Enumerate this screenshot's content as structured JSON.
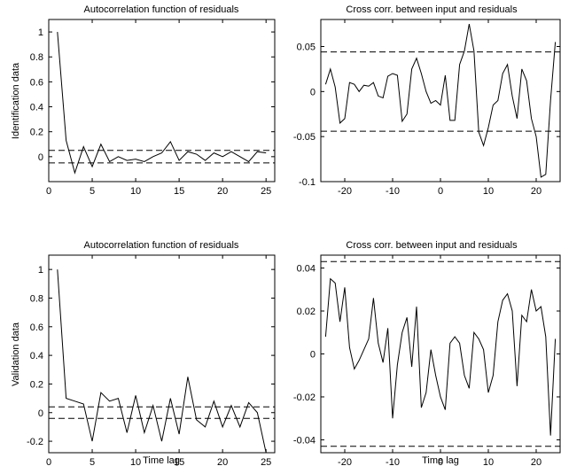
{
  "chart_data": [
    {
      "type": "line",
      "title": "Autocorrelation function of residuals",
      "ylabel": "Identification data",
      "xlabel": "",
      "xlim": [
        0,
        26
      ],
      "ylim": [
        -0.2,
        1.1
      ],
      "xticks": [
        0,
        5,
        10,
        15,
        20,
        25
      ],
      "yticks": [
        0,
        0.2,
        0.4,
        0.6,
        0.8,
        1
      ],
      "ytick_labels": [
        "0",
        "0.2",
        "0.4",
        "0.6",
        "0.8",
        "1"
      ],
      "grid": false,
      "x": [
        1,
        2,
        3,
        4,
        5,
        6,
        7,
        8,
        9,
        10,
        11,
        12,
        13,
        14,
        15,
        16,
        17,
        18,
        19,
        20,
        21,
        22,
        23,
        24,
        25
      ],
      "values": [
        1.0,
        0.13,
        -0.13,
        0.08,
        -0.08,
        0.1,
        -0.04,
        0.0,
        -0.03,
        -0.02,
        -0.04,
        0.0,
        0.03,
        0.12,
        -0.03,
        0.04,
        0.02,
        -0.03,
        0.03,
        0.0,
        0.04,
        0.0,
        -0.04,
        0.04,
        0.03
      ],
      "conf_bounds": [
        0.05,
        -0.05
      ]
    },
    {
      "type": "line",
      "title": "Cross corr. between input and residuals",
      "ylabel": "",
      "xlabel": "",
      "xlim": [
        -25,
        25
      ],
      "ylim": [
        -0.1,
        0.08
      ],
      "xticks": [
        -20,
        -10,
        0,
        10,
        20
      ],
      "yticks": [
        -0.1,
        -0.05,
        0,
        0.05
      ],
      "ytick_labels": [
        "-0.1",
        "-0.05",
        "0",
        "0.05"
      ],
      "grid": false,
      "x": [
        -24,
        -23,
        -22,
        -21,
        -20,
        -19,
        -18,
        -17,
        -16,
        -15,
        -14,
        -13,
        -12,
        -11,
        -10,
        -9,
        -8,
        -7,
        -6,
        -5,
        -4,
        -3,
        -2,
        -1,
        0,
        1,
        2,
        3,
        4,
        5,
        6,
        7,
        8,
        9,
        10,
        11,
        12,
        13,
        14,
        15,
        16,
        17,
        18,
        19,
        20,
        21,
        22,
        23,
        24
      ],
      "values": [
        0.008,
        0.025,
        0.005,
        -0.035,
        -0.03,
        0.01,
        0.008,
        0.0,
        0.007,
        0.006,
        0.01,
        -0.005,
        -0.007,
        0.017,
        0.02,
        0.018,
        -0.033,
        -0.025,
        0.025,
        0.037,
        0.02,
        0.0,
        -0.013,
        -0.01,
        -0.015,
        0.018,
        -0.032,
        -0.032,
        0.03,
        0.045,
        0.075,
        0.045,
        -0.045,
        -0.06,
        -0.04,
        -0.015,
        -0.01,
        0.02,
        0.03,
        -0.005,
        -0.03,
        0.025,
        0.012,
        -0.03,
        -0.05,
        -0.095,
        -0.092,
        -0.01,
        0.055
      ],
      "conf_bounds": [
        0.044,
        -0.044
      ]
    },
    {
      "type": "line",
      "title": "Autocorrelation function of residuals",
      "ylabel": "Validation data",
      "xlabel": "Time lag",
      "xlim": [
        0,
        26
      ],
      "ylim": [
        -0.28,
        1.1
      ],
      "xticks": [
        0,
        5,
        10,
        15,
        20,
        25
      ],
      "yticks": [
        -0.2,
        0,
        0.2,
        0.4,
        0.6,
        0.8,
        1
      ],
      "ytick_labels": [
        "-0.2",
        "0",
        "0.2",
        "0.4",
        "0.6",
        "0.8",
        "1"
      ],
      "grid": false,
      "x": [
        1,
        2,
        3,
        4,
        5,
        6,
        7,
        8,
        9,
        10,
        11,
        12,
        13,
        14,
        15,
        16,
        17,
        18,
        19,
        20,
        21,
        22,
        23,
        24,
        25
      ],
      "values": [
        1.0,
        0.1,
        0.08,
        0.06,
        -0.2,
        0.14,
        0.08,
        0.1,
        -0.14,
        0.12,
        -0.14,
        0.05,
        -0.2,
        0.1,
        -0.15,
        0.25,
        -0.05,
        -0.1,
        0.08,
        -0.1,
        0.05,
        -0.1,
        0.07,
        0.0,
        -0.28
      ],
      "conf_bounds": [
        0.04,
        -0.04
      ]
    },
    {
      "type": "line",
      "title": "Cross corr. between input and residuals",
      "ylabel": "",
      "xlabel": "Time lag",
      "xlim": [
        -25,
        25
      ],
      "ylim": [
        -0.046,
        0.046
      ],
      "xticks": [
        -20,
        -10,
        0,
        10,
        20
      ],
      "yticks": [
        -0.04,
        -0.02,
        0,
        0.02,
        0.04
      ],
      "ytick_labels": [
        "-0.04",
        "-0.02",
        "0",
        "0.02",
        "0.04"
      ],
      "grid": false,
      "x": [
        -24,
        -23,
        -22,
        -21,
        -20,
        -19,
        -18,
        -17,
        -16,
        -15,
        -14,
        -13,
        -12,
        -11,
        -10,
        -9,
        -8,
        -7,
        -6,
        -5,
        -4,
        -3,
        -2,
        -1,
        0,
        1,
        2,
        3,
        4,
        5,
        6,
        7,
        8,
        9,
        10,
        11,
        12,
        13,
        14,
        15,
        16,
        17,
        18,
        19,
        20,
        21,
        22,
        23,
        24
      ],
      "values": [
        0.008,
        0.035,
        0.033,
        0.015,
        0.031,
        0.003,
        -0.007,
        -0.003,
        0.002,
        0.007,
        0.026,
        0.005,
        -0.004,
        0.012,
        -0.03,
        -0.005,
        0.01,
        0.017,
        -0.006,
        0.022,
        -0.025,
        -0.018,
        0.002,
        -0.01,
        -0.02,
        -0.026,
        0.005,
        0.008,
        0.005,
        -0.01,
        -0.016,
        0.01,
        0.007,
        0.002,
        -0.018,
        -0.01,
        0.015,
        0.025,
        0.028,
        0.02,
        -0.015,
        0.018,
        0.015,
        0.03,
        0.02,
        0.022,
        0.008,
        -0.038,
        0.007
      ],
      "conf_bounds": [
        0.043,
        -0.043
      ]
    }
  ]
}
